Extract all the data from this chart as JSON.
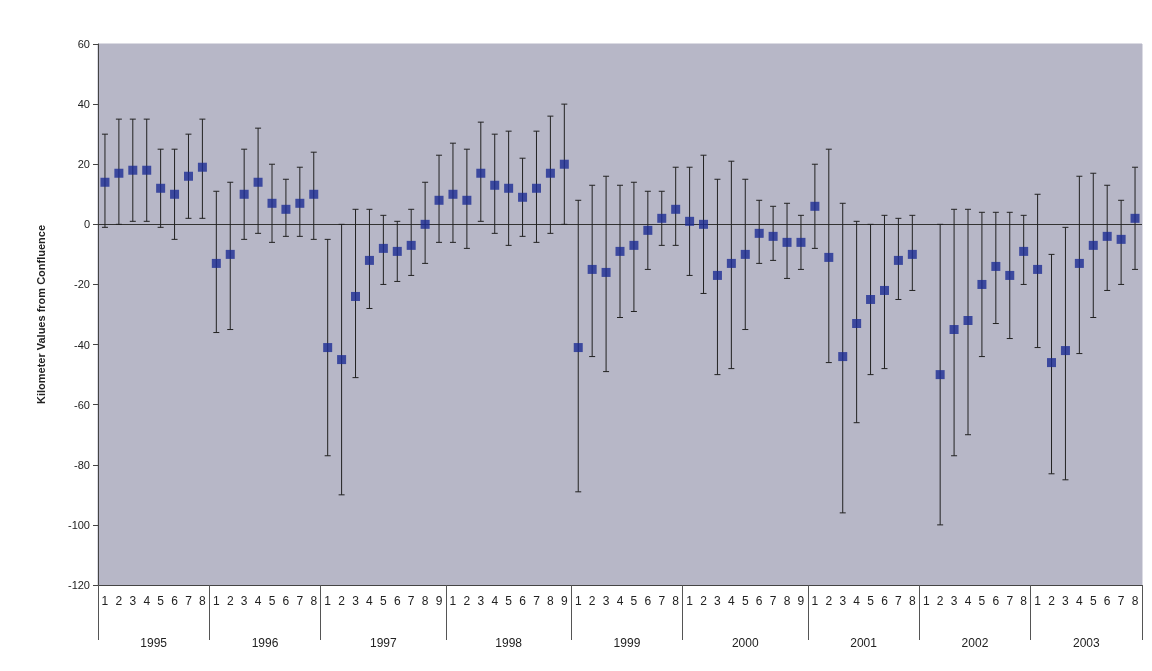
{
  "chart_data": {
    "type": "scatter",
    "ylabel": "Kilometer Values from Confluence",
    "categories": [
      "1",
      "2",
      "3",
      "4",
      "5",
      "6",
      "7",
      "8",
      "1",
      "2",
      "3",
      "4",
      "5",
      "6",
      "7",
      "8",
      "1",
      "2",
      "3",
      "4",
      "5",
      "6",
      "7",
      "8",
      "9",
      "1",
      "2",
      "3",
      "4",
      "5",
      "6",
      "7",
      "8",
      "9",
      "1",
      "2",
      "3",
      "4",
      "5",
      "6",
      "7",
      "8",
      "1",
      "2",
      "3",
      "4",
      "5",
      "6",
      "7",
      "8",
      "9",
      "1",
      "2",
      "3",
      "4",
      "5",
      "6",
      "7",
      "8",
      "1",
      "2",
      "3",
      "4",
      "5",
      "6",
      "7",
      "8",
      "1",
      "2",
      "3",
      "4",
      "5",
      "6",
      "7",
      "8"
    ],
    "annotations": [
      "1995",
      "1996",
      "1997",
      "1998",
      "1999",
      "2000",
      "2001",
      "2002",
      "2003"
    ],
    "series": [
      {
        "color": "#1c2c94",
        "values": [
          14,
          17,
          18,
          18,
          12,
          10,
          16,
          19,
          -13,
          -10,
          10,
          14,
          7,
          5,
          7,
          10,
          -41,
          -45,
          -24,
          -12,
          -8,
          -9,
          -7,
          0,
          8,
          10,
          8,
          17,
          13,
          12,
          9,
          12,
          17,
          20,
          -41,
          -15,
          -16,
          -9,
          -7,
          -2,
          2,
          5,
          1,
          0,
          -17,
          -13,
          -10,
          -3,
          -4,
          -6,
          -6,
          6,
          -11,
          -44,
          -33,
          -25,
          -22,
          -12,
          -10,
          null,
          -50,
          -35,
          -32,
          -20,
          -14,
          -17,
          -9,
          -15,
          -46,
          -42,
          -13,
          -7,
          -4,
          -5,
          2
        ],
        "errors": [
          [
            -1,
            30
          ],
          [
            0,
            35
          ],
          [
            1,
            35
          ],
          [
            1,
            35
          ],
          [
            -1,
            25
          ],
          [
            -5,
            25
          ],
          [
            2,
            30
          ],
          [
            2,
            35
          ],
          [
            -36,
            11
          ],
          [
            -35,
            14
          ],
          [
            -5,
            25
          ],
          [
            -3,
            32
          ],
          [
            -6,
            20
          ],
          [
            -4,
            15
          ],
          [
            -4,
            19
          ],
          [
            -5,
            24
          ],
          [
            -77,
            -5
          ],
          [
            -90,
            0
          ],
          [
            -51,
            5
          ],
          [
            -28,
            5
          ],
          [
            -20,
            3
          ],
          [
            -19,
            1
          ],
          [
            -17,
            5
          ],
          [
            -13,
            14
          ],
          [
            -6,
            23
          ],
          [
            -6,
            27
          ],
          [
            -8,
            25
          ],
          [
            1,
            34
          ],
          [
            -3,
            30
          ],
          [
            -7,
            31
          ],
          [
            -4,
            22
          ],
          [
            -6,
            31
          ],
          [
            -3,
            36
          ],
          [
            0,
            40
          ],
          [
            -89,
            8
          ],
          [
            -44,
            13
          ],
          [
            -49,
            16
          ],
          [
            -31,
            13
          ],
          [
            -29,
            14
          ],
          [
            -15,
            11
          ],
          [
            -7,
            11
          ],
          [
            -7,
            19
          ],
          [
            -17,
            19
          ],
          [
            -23,
            23
          ],
          [
            -50,
            15
          ],
          [
            -48,
            21
          ],
          [
            -35,
            15
          ],
          [
            -13,
            8
          ],
          [
            -12,
            6
          ],
          [
            -18,
            7
          ],
          [
            -15,
            3
          ],
          [
            -8,
            20
          ],
          [
            -46,
            25
          ],
          [
            -96,
            7
          ],
          [
            -66,
            1
          ],
          [
            -50,
            0
          ],
          [
            -48,
            3
          ],
          [
            -25,
            2
          ],
          [
            -22,
            3
          ],
          null,
          [
            -100,
            0
          ],
          [
            -77,
            5
          ],
          [
            -70,
            5
          ],
          [
            -44,
            4
          ],
          [
            -33,
            4
          ],
          [
            -38,
            4
          ],
          [
            -20,
            3
          ],
          [
            -41,
            10
          ],
          [
            -83,
            -10
          ],
          [
            -85,
            -1
          ],
          [
            -43,
            16
          ],
          [
            -31,
            17
          ],
          [
            -22,
            13
          ],
          [
            -20,
            8
          ],
          [
            -15,
            19
          ]
        ]
      }
    ],
    "ylim": [
      -120,
      60
    ],
    "yticks": [
      -120,
      -100,
      -80,
      -60,
      -40,
      -20,
      0,
      20,
      40,
      60
    ],
    "ref_lines": [
      {
        "axis": "y",
        "value": 0,
        "color": "#333333"
      }
    ],
    "marker": "square",
    "grid": false
  }
}
